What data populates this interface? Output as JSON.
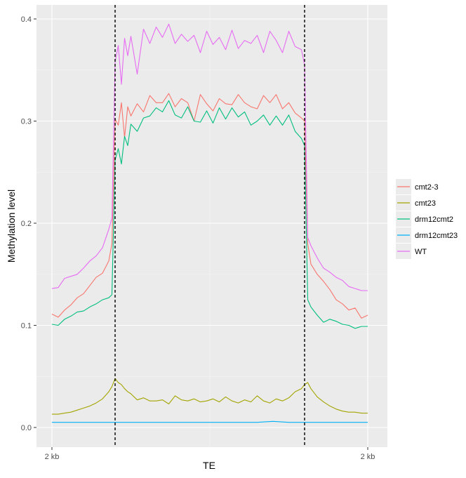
{
  "chart_data": {
    "type": "line",
    "title": "",
    "xlabel": "TE",
    "ylabel": "Methylation level",
    "x_range": [
      0,
      100
    ],
    "ylim": [
      -0.02,
      0.41
    ],
    "y_ticks": [
      0.0,
      0.1,
      0.2,
      0.3,
      0.4
    ],
    "y_tick_labels": [
      "0.0",
      "0.1",
      "0.2",
      "0.3",
      "0.4"
    ],
    "x_ticks": [
      0,
      100
    ],
    "x_tick_labels": [
      "2 kb",
      "2 kb"
    ],
    "vlines": [
      20,
      80
    ],
    "grid": true,
    "legend_position": "right",
    "series": [
      {
        "name": "cmt2-3",
        "color": "#F8766D",
        "x": [
          0,
          2,
          4,
          6,
          8,
          10,
          12,
          14,
          16,
          18,
          19,
          20,
          21,
          22,
          23,
          24,
          25,
          27,
          29,
          31,
          33,
          35,
          37,
          39,
          41,
          43,
          45,
          47,
          49,
          51,
          53,
          55,
          57,
          59,
          61,
          63,
          65,
          67,
          69,
          71,
          73,
          75,
          77,
          79,
          80,
          81,
          82,
          84,
          86,
          88,
          90,
          92,
          94,
          96,
          98,
          100
        ],
        "values": [
          0.111,
          0.108,
          0.115,
          0.12,
          0.127,
          0.131,
          0.139,
          0.147,
          0.151,
          0.163,
          0.18,
          0.302,
          0.296,
          0.318,
          0.284,
          0.314,
          0.305,
          0.317,
          0.309,
          0.325,
          0.318,
          0.318,
          0.327,
          0.314,
          0.322,
          0.318,
          0.3,
          0.326,
          0.317,
          0.31,
          0.322,
          0.317,
          0.316,
          0.326,
          0.318,
          0.314,
          0.312,
          0.325,
          0.318,
          0.326,
          0.312,
          0.318,
          0.308,
          0.303,
          0.3,
          0.18,
          0.16,
          0.15,
          0.143,
          0.135,
          0.125,
          0.121,
          0.115,
          0.117,
          0.107,
          0.11
        ]
      },
      {
        "name": "cmt23",
        "color": "#A3A500",
        "x": [
          0,
          2,
          4,
          6,
          8,
          10,
          12,
          14,
          16,
          18,
          19,
          20,
          21,
          22,
          23,
          24,
          25,
          27,
          29,
          31,
          33,
          35,
          37,
          39,
          41,
          43,
          45,
          47,
          49,
          51,
          53,
          55,
          57,
          59,
          61,
          63,
          65,
          67,
          69,
          71,
          73,
          75,
          77,
          79,
          80,
          81,
          82,
          84,
          86,
          88,
          90,
          92,
          94,
          96,
          98,
          100
        ],
        "values": [
          0.013,
          0.013,
          0.014,
          0.015,
          0.017,
          0.019,
          0.021,
          0.024,
          0.028,
          0.035,
          0.04,
          0.048,
          0.044,
          0.042,
          0.038,
          0.035,
          0.033,
          0.027,
          0.029,
          0.026,
          0.026,
          0.027,
          0.023,
          0.031,
          0.027,
          0.026,
          0.028,
          0.025,
          0.026,
          0.028,
          0.025,
          0.03,
          0.026,
          0.024,
          0.027,
          0.025,
          0.031,
          0.026,
          0.024,
          0.028,
          0.026,
          0.029,
          0.035,
          0.038,
          0.042,
          0.044,
          0.038,
          0.03,
          0.025,
          0.021,
          0.018,
          0.016,
          0.015,
          0.015,
          0.014,
          0.014
        ]
      },
      {
        "name": "drm12cmt2",
        "color": "#00BF7D",
        "x": [
          0,
          2,
          4,
          6,
          8,
          10,
          12,
          14,
          16,
          18,
          19,
          20,
          21,
          22,
          23,
          24,
          25,
          27,
          29,
          31,
          33,
          35,
          37,
          39,
          41,
          43,
          45,
          47,
          49,
          51,
          53,
          55,
          57,
          59,
          61,
          63,
          65,
          67,
          69,
          71,
          73,
          75,
          77,
          79,
          80,
          81,
          82,
          84,
          86,
          88,
          90,
          92,
          94,
          96,
          98,
          100
        ],
        "values": [
          0.101,
          0.1,
          0.106,
          0.109,
          0.113,
          0.114,
          0.118,
          0.121,
          0.125,
          0.127,
          0.13,
          0.262,
          0.273,
          0.258,
          0.285,
          0.276,
          0.297,
          0.29,
          0.303,
          0.305,
          0.313,
          0.309,
          0.32,
          0.306,
          0.303,
          0.314,
          0.3,
          0.299,
          0.31,
          0.298,
          0.313,
          0.302,
          0.313,
          0.304,
          0.309,
          0.296,
          0.3,
          0.306,
          0.296,
          0.305,
          0.296,
          0.306,
          0.29,
          0.283,
          0.276,
          0.125,
          0.118,
          0.11,
          0.103,
          0.106,
          0.104,
          0.101,
          0.1,
          0.097,
          0.099,
          0.099
        ]
      },
      {
        "name": "drm12cmt23",
        "color": "#00B0F6",
        "x": [
          0,
          5,
          10,
          15,
          20,
          25,
          30,
          35,
          40,
          45,
          50,
          55,
          60,
          65,
          70,
          75,
          80,
          85,
          90,
          95,
          100
        ],
        "values": [
          0.005,
          0.005,
          0.005,
          0.005,
          0.005,
          0.005,
          0.005,
          0.005,
          0.005,
          0.005,
          0.005,
          0.005,
          0.005,
          0.005,
          0.006,
          0.005,
          0.005,
          0.005,
          0.005,
          0.005,
          0.005
        ]
      },
      {
        "name": "WT",
        "color": "#E76BF3",
        "x": [
          0,
          2,
          4,
          6,
          8,
          10,
          12,
          14,
          16,
          18,
          19,
          20,
          21,
          22,
          23,
          24,
          25,
          27,
          29,
          31,
          33,
          35,
          37,
          39,
          41,
          43,
          45,
          47,
          49,
          51,
          53,
          55,
          57,
          59,
          61,
          63,
          65,
          67,
          69,
          71,
          73,
          75,
          77,
          79,
          80,
          81,
          82,
          84,
          86,
          88,
          90,
          92,
          94,
          96,
          98,
          100
        ],
        "values": [
          0.136,
          0.137,
          0.146,
          0.148,
          0.15,
          0.156,
          0.163,
          0.168,
          0.176,
          0.194,
          0.205,
          0.358,
          0.374,
          0.336,
          0.381,
          0.364,
          0.383,
          0.346,
          0.39,
          0.376,
          0.392,
          0.382,
          0.395,
          0.376,
          0.385,
          0.378,
          0.384,
          0.367,
          0.388,
          0.375,
          0.382,
          0.37,
          0.389,
          0.371,
          0.379,
          0.376,
          0.384,
          0.367,
          0.388,
          0.379,
          0.367,
          0.388,
          0.373,
          0.37,
          0.355,
          0.186,
          0.178,
          0.166,
          0.156,
          0.152,
          0.147,
          0.144,
          0.138,
          0.136,
          0.134,
          0.134
        ]
      }
    ]
  }
}
